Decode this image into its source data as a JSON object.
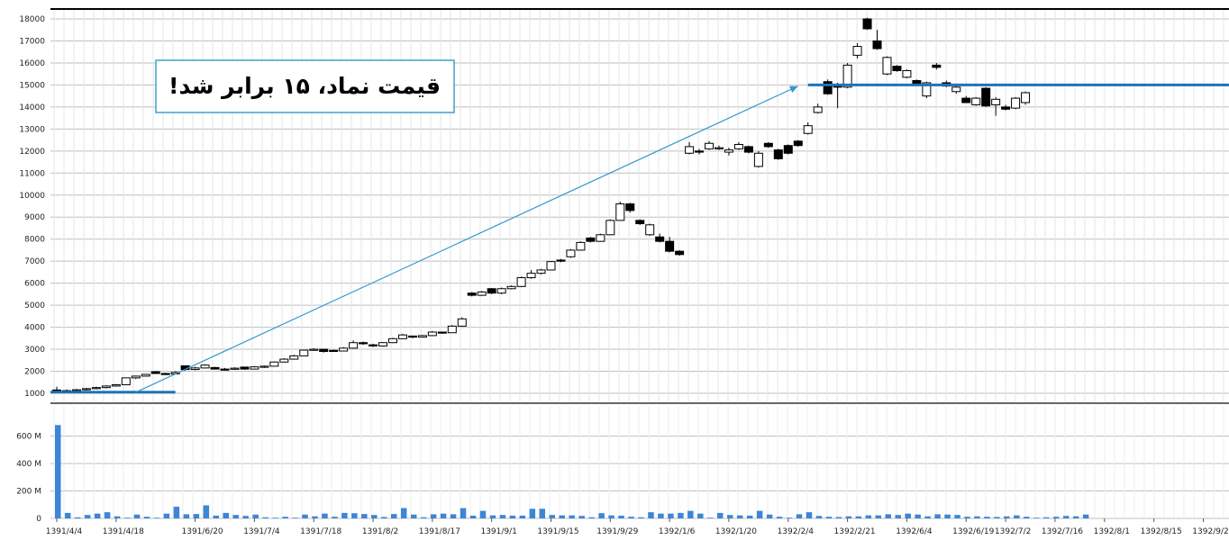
{
  "annotation": {
    "text": "قیمت نماد، ۱۵ برابر شد!"
  },
  "chart_data": [
    {
      "type": "candlestick",
      "y_range": [
        0,
        18000
      ],
      "y_ticks": [
        1000,
        2000,
        3000,
        4000,
        5000,
        6000,
        7000,
        8000,
        9000,
        10000,
        11000,
        12000,
        13000,
        14000,
        15000,
        16000,
        17000,
        18000
      ],
      "y_tick_labels": [
        "1000",
        "2000",
        "3000",
        "4000",
        "5000",
        "6000",
        "7000",
        "8000",
        "9000",
        "10000",
        "11000",
        "12000",
        "13000",
        "14000",
        "15000",
        "16000",
        "17000",
        "18000"
      ],
      "grid": true,
      "colors": {
        "up_fill": "#ffffff",
        "down_fill": "#000000",
        "wick": "#000000",
        "level_line": "#1e73b8",
        "arrow": "#3399cc"
      },
      "levels": [
        {
          "from_index": 0,
          "to_index": 12,
          "value": 1050
        },
        {
          "from_index": 76,
          "to_index": 99,
          "value": 15000
        }
      ],
      "arrow": {
        "from_index": 8,
        "from_value": 1050,
        "to_index": 75,
        "to_value": 14950
      },
      "candles": [
        {
          "o": 1150,
          "h": 1300,
          "l": 1050,
          "c": 1100
        },
        {
          "o": 1100,
          "h": 1180,
          "l": 1000,
          "c": 1120
        },
        {
          "o": 1120,
          "h": 1200,
          "l": 1080,
          "c": 1160
        },
        {
          "o": 1160,
          "h": 1240,
          "l": 1120,
          "c": 1210
        },
        {
          "o": 1210,
          "h": 1300,
          "l": 1180,
          "c": 1260
        },
        {
          "o": 1260,
          "h": 1360,
          "l": 1220,
          "c": 1330
        },
        {
          "o": 1330,
          "h": 1420,
          "l": 1300,
          "c": 1390
        },
        {
          "o": 1390,
          "h": 1720,
          "l": 1370,
          "c": 1700
        },
        {
          "o": 1700,
          "h": 1800,
          "l": 1650,
          "c": 1780
        },
        {
          "o": 1780,
          "h": 1880,
          "l": 1760,
          "c": 1860
        },
        {
          "o": 1980,
          "h": 2010,
          "l": 1880,
          "c": 1900
        },
        {
          "o": 1900,
          "h": 1930,
          "l": 1840,
          "c": 1880
        },
        {
          "o": 1880,
          "h": 1990,
          "l": 1860,
          "c": 1950
        },
        {
          "o": 2250,
          "h": 2260,
          "l": 2020,
          "c": 2080
        },
        {
          "o": 2080,
          "h": 2200,
          "l": 2050,
          "c": 2150
        },
        {
          "o": 2150,
          "h": 2320,
          "l": 2120,
          "c": 2280
        },
        {
          "o": 2170,
          "h": 2200,
          "l": 2080,
          "c": 2100
        },
        {
          "o": 2100,
          "h": 2150,
          "l": 2060,
          "c": 2090
        },
        {
          "o": 2090,
          "h": 2180,
          "l": 2070,
          "c": 2140
        },
        {
          "o": 2190,
          "h": 2200,
          "l": 2070,
          "c": 2100
        },
        {
          "o": 2100,
          "h": 2240,
          "l": 2090,
          "c": 2200
        },
        {
          "o": 2200,
          "h": 2260,
          "l": 2150,
          "c": 2230
        },
        {
          "o": 2230,
          "h": 2450,
          "l": 2210,
          "c": 2420
        },
        {
          "o": 2420,
          "h": 2600,
          "l": 2400,
          "c": 2550
        },
        {
          "o": 2550,
          "h": 2750,
          "l": 2530,
          "c": 2700
        },
        {
          "o": 2700,
          "h": 2980,
          "l": 2680,
          "c": 2960
        },
        {
          "o": 2960,
          "h": 3050,
          "l": 2940,
          "c": 3000
        },
        {
          "o": 3000,
          "h": 3020,
          "l": 2850,
          "c": 2900
        },
        {
          "o": 2950,
          "h": 2980,
          "l": 2900,
          "c": 2920
        },
        {
          "o": 2920,
          "h": 3100,
          "l": 2900,
          "c": 3050
        },
        {
          "o": 3050,
          "h": 3400,
          "l": 3030,
          "c": 3300
        },
        {
          "o": 3300,
          "h": 3350,
          "l": 3200,
          "c": 3250
        },
        {
          "o": 3200,
          "h": 3250,
          "l": 3100,
          "c": 3150
        },
        {
          "o": 3150,
          "h": 3330,
          "l": 3120,
          "c": 3300
        },
        {
          "o": 3300,
          "h": 3520,
          "l": 3280,
          "c": 3480
        },
        {
          "o": 3480,
          "h": 3700,
          "l": 3460,
          "c": 3650
        },
        {
          "o": 3600,
          "h": 3620,
          "l": 3500,
          "c": 3550
        },
        {
          "o": 3550,
          "h": 3650,
          "l": 3530,
          "c": 3620
        },
        {
          "o": 3620,
          "h": 3830,
          "l": 3600,
          "c": 3780
        },
        {
          "o": 3780,
          "h": 3800,
          "l": 3700,
          "c": 3750
        },
        {
          "o": 3750,
          "h": 4100,
          "l": 3740,
          "c": 4050
        },
        {
          "o": 4050,
          "h": 4450,
          "l": 4030,
          "c": 4380
        },
        {
          "o": 5550,
          "h": 5600,
          "l": 5400,
          "c": 5450
        },
        {
          "o": 5450,
          "h": 5650,
          "l": 5420,
          "c": 5600
        },
        {
          "o": 5750,
          "h": 5780,
          "l": 5500,
          "c": 5550
        },
        {
          "o": 5550,
          "h": 5800,
          "l": 5500,
          "c": 5750
        },
        {
          "o": 5750,
          "h": 5900,
          "l": 5720,
          "c": 5850
        },
        {
          "o": 5850,
          "h": 6300,
          "l": 5820,
          "c": 6250
        },
        {
          "o": 6250,
          "h": 6600,
          "l": 6200,
          "c": 6450
        },
        {
          "o": 6450,
          "h": 6650,
          "l": 6400,
          "c": 6600
        },
        {
          "o": 6600,
          "h": 7000,
          "l": 6580,
          "c": 6980
        },
        {
          "o": 7050,
          "h": 7100,
          "l": 6950,
          "c": 7000
        },
        {
          "o": 7200,
          "h": 7550,
          "l": 7150,
          "c": 7500
        },
        {
          "o": 7500,
          "h": 7900,
          "l": 7480,
          "c": 7850
        },
        {
          "o": 8050,
          "h": 8100,
          "l": 7850,
          "c": 7900
        },
        {
          "o": 7900,
          "h": 8250,
          "l": 7880,
          "c": 8200
        },
        {
          "o": 8200,
          "h": 8900,
          "l": 8180,
          "c": 8850
        },
        {
          "o": 8850,
          "h": 9700,
          "l": 8830,
          "c": 9600
        },
        {
          "o": 9600,
          "h": 9650,
          "l": 9200,
          "c": 9300
        },
        {
          "o": 8850,
          "h": 8900,
          "l": 8650,
          "c": 8700
        },
        {
          "o": 8200,
          "h": 8700,
          "l": 8150,
          "c": 8650
        },
        {
          "o": 8100,
          "h": 8250,
          "l": 7850,
          "c": 7900
        },
        {
          "o": 7900,
          "h": 8100,
          "l": 7400,
          "c": 7450
        },
        {
          "o": 7450,
          "h": 7500,
          "l": 7250,
          "c": 7300
        },
        {
          "o": 11900,
          "h": 12400,
          "l": 11850,
          "c": 12200
        },
        {
          "o": 12000,
          "h": 12100,
          "l": 11850,
          "c": 11950
        },
        {
          "o": 12100,
          "h": 12450,
          "l": 12050,
          "c": 12350
        },
        {
          "o": 12100,
          "h": 12250,
          "l": 12050,
          "c": 12150
        },
        {
          "o": 11950,
          "h": 12150,
          "l": 11800,
          "c": 12050
        },
        {
          "o": 12100,
          "h": 12400,
          "l": 12050,
          "c": 12300
        },
        {
          "o": 12200,
          "h": 12250,
          "l": 11900,
          "c": 11950
        },
        {
          "o": 11300,
          "h": 12000,
          "l": 11250,
          "c": 11900
        },
        {
          "o": 12350,
          "h": 12400,
          "l": 12150,
          "c": 12200
        },
        {
          "o": 12050,
          "h": 12100,
          "l": 11600,
          "c": 11650
        },
        {
          "o": 12250,
          "h": 12300,
          "l": 11850,
          "c": 11900
        },
        {
          "o": 12450,
          "h": 12500,
          "l": 12200,
          "c": 12250
        },
        {
          "o": 12800,
          "h": 13300,
          "l": 12750,
          "c": 13150
        },
        {
          "o": 13750,
          "h": 14150,
          "l": 13700,
          "c": 14000
        },
        {
          "o": 15150,
          "h": 15250,
          "l": 14550,
          "c": 14600
        },
        {
          "o": 15000,
          "h": 15100,
          "l": 13950,
          "c": 14900
        },
        {
          "o": 14900,
          "h": 16000,
          "l": 14850,
          "c": 15900
        },
        {
          "o": 16350,
          "h": 16900,
          "l": 16200,
          "c": 16750
        },
        {
          "o": 18000,
          "h": 18050,
          "l": 17500,
          "c": 17550
        },
        {
          "o": 17000,
          "h": 17500,
          "l": 16600,
          "c": 16650
        },
        {
          "o": 15500,
          "h": 16300,
          "l": 15450,
          "c": 16250
        },
        {
          "o": 15850,
          "h": 15900,
          "l": 15600,
          "c": 15650
        },
        {
          "o": 15350,
          "h": 15700,
          "l": 15300,
          "c": 15650
        },
        {
          "o": 15200,
          "h": 15250,
          "l": 14950,
          "c": 15000
        },
        {
          "o": 14500,
          "h": 15150,
          "l": 14400,
          "c": 15100
        },
        {
          "o": 15900,
          "h": 16000,
          "l": 15700,
          "c": 15800
        },
        {
          "o": 15100,
          "h": 15200,
          "l": 14900,
          "c": 14950
        },
        {
          "o": 14700,
          "h": 14950,
          "l": 14600,
          "c": 14900
        },
        {
          "o": 14400,
          "h": 14500,
          "l": 14200,
          "c": 14200
        },
        {
          "o": 14100,
          "h": 14450,
          "l": 14050,
          "c": 14400
        },
        {
          "o": 14850,
          "h": 14900,
          "l": 14000,
          "c": 14050
        },
        {
          "o": 14100,
          "h": 14450,
          "l": 13600,
          "c": 14350
        },
        {
          "o": 14000,
          "h": 14100,
          "l": 13850,
          "c": 13900
        },
        {
          "o": 13950,
          "h": 14450,
          "l": 13900,
          "c": 14400
        },
        {
          "o": 14200,
          "h": 14700,
          "l": 14100,
          "c": 14650
        }
      ]
    },
    {
      "type": "bar",
      "y_range": [
        0,
        750
      ],
      "y_ticks": [
        0,
        200,
        400,
        600
      ],
      "y_tick_labels": [
        "0",
        "200 M",
        "400 M",
        "600 M"
      ],
      "grid": true,
      "colors": {
        "bar": "#3d85d8"
      },
      "x_tick_labels": [
        "1391/4/4",
        "1391/4/18",
        "1391/6/20",
        "1391/7/4",
        "1391/7/18",
        "1391/8/2",
        "1391/8/17",
        "1391/9/1",
        "1391/9/15",
        "1391/9/29",
        "1392/1/6",
        "1392/1/20",
        "1392/2/4",
        "1392/2/21",
        "1392/6/4",
        "1392/6/19",
        "1392/7/2",
        "1392/7/16",
        "1392/8/1",
        "1392/8/15",
        "1392/9/2"
      ],
      "x_tick_index": [
        0,
        6,
        14,
        20,
        26,
        32,
        38,
        44,
        50,
        56,
        62,
        68,
        74,
        80,
        86,
        92,
        96,
        101,
        106,
        111,
        116
      ],
      "values": [
        680,
        40,
        8,
        25,
        35,
        45,
        15,
        5,
        28,
        12,
        5,
        35,
        85,
        30,
        32,
        95,
        20,
        40,
        25,
        18,
        28,
        8,
        5,
        12,
        5,
        28,
        15,
        35,
        12,
        40,
        38,
        32,
        25,
        10,
        32,
        75,
        28,
        8,
        30,
        35,
        30,
        75,
        20,
        55,
        22,
        25,
        20,
        20,
        70,
        70,
        25,
        22,
        22,
        18,
        8,
        38,
        22,
        20,
        12,
        8,
        45,
        35,
        35,
        40,
        55,
        35,
        5,
        40,
        25,
        22,
        20,
        55,
        28,
        12,
        5,
        30,
        45,
        18,
        12,
        10,
        15,
        15,
        22,
        22,
        30,
        25,
        35,
        28,
        15,
        30,
        28,
        25,
        12,
        15,
        12,
        10,
        15,
        22,
        12,
        5,
        8,
        12,
        18,
        15,
        28
      ]
    }
  ]
}
